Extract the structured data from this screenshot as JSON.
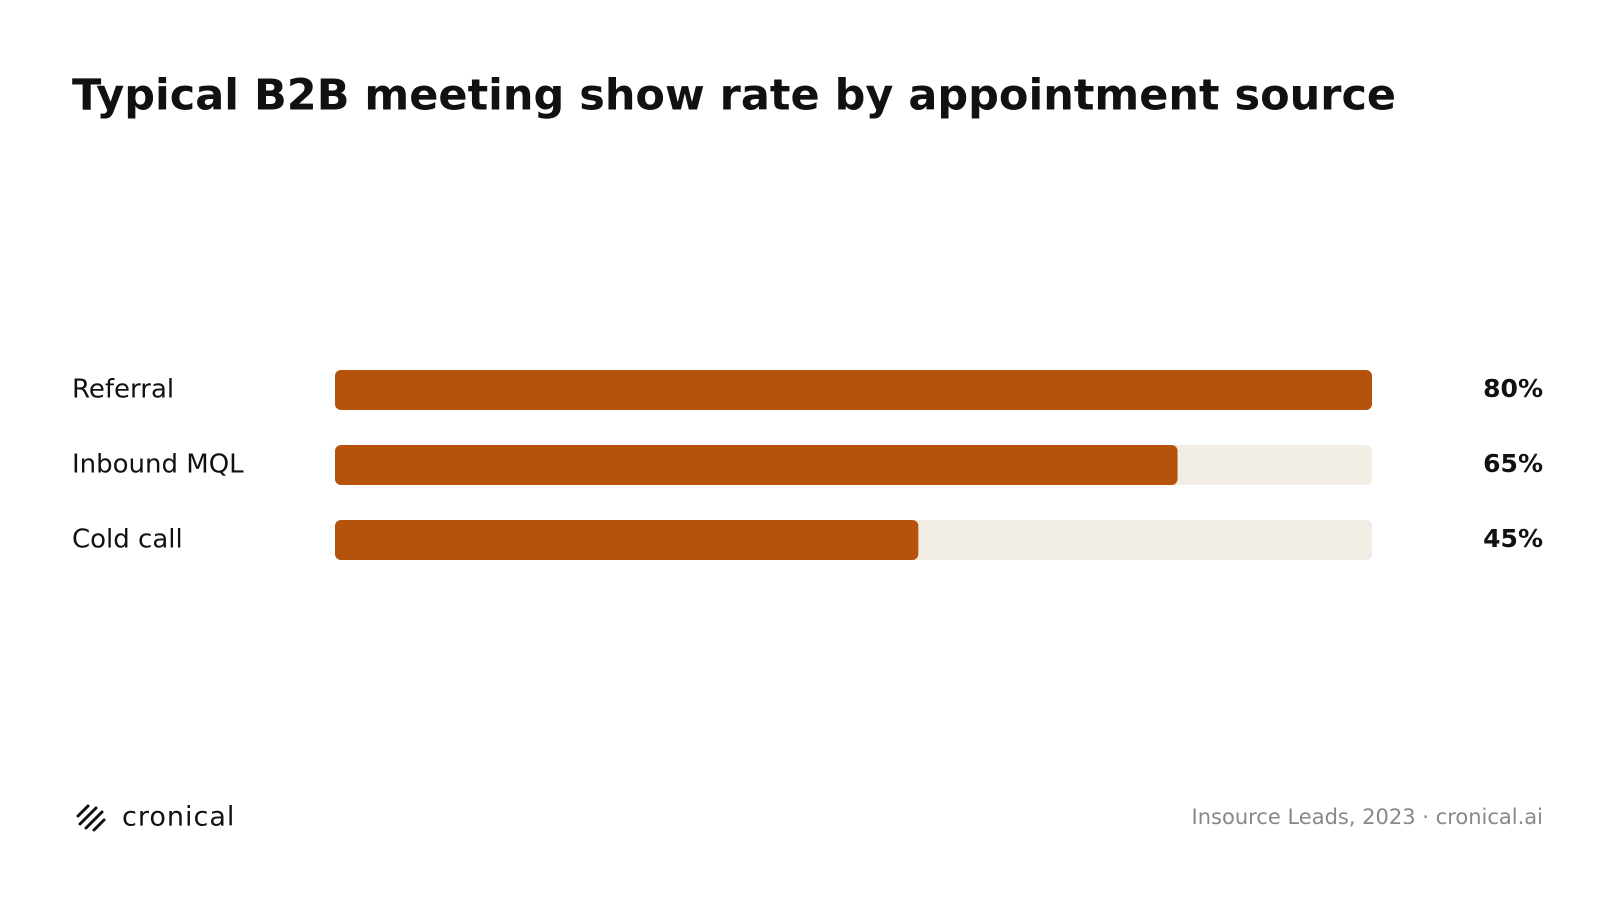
{
  "chart_data": {
    "type": "bar",
    "orientation": "horizontal",
    "title": "Typical B2B meeting show rate by appointment source",
    "categories": [
      "Referral",
      "Inbound MQL",
      "Cold call"
    ],
    "values": [
      80,
      65,
      45
    ],
    "value_labels": [
      "80%",
      "65%",
      "45%"
    ],
    "color": "#b5520b",
    "track_color": "#f1ece4",
    "xlim": [
      0,
      80
    ],
    "brand": "cronical",
    "source": "Insource Leads, 2023 · cronical.ai"
  }
}
